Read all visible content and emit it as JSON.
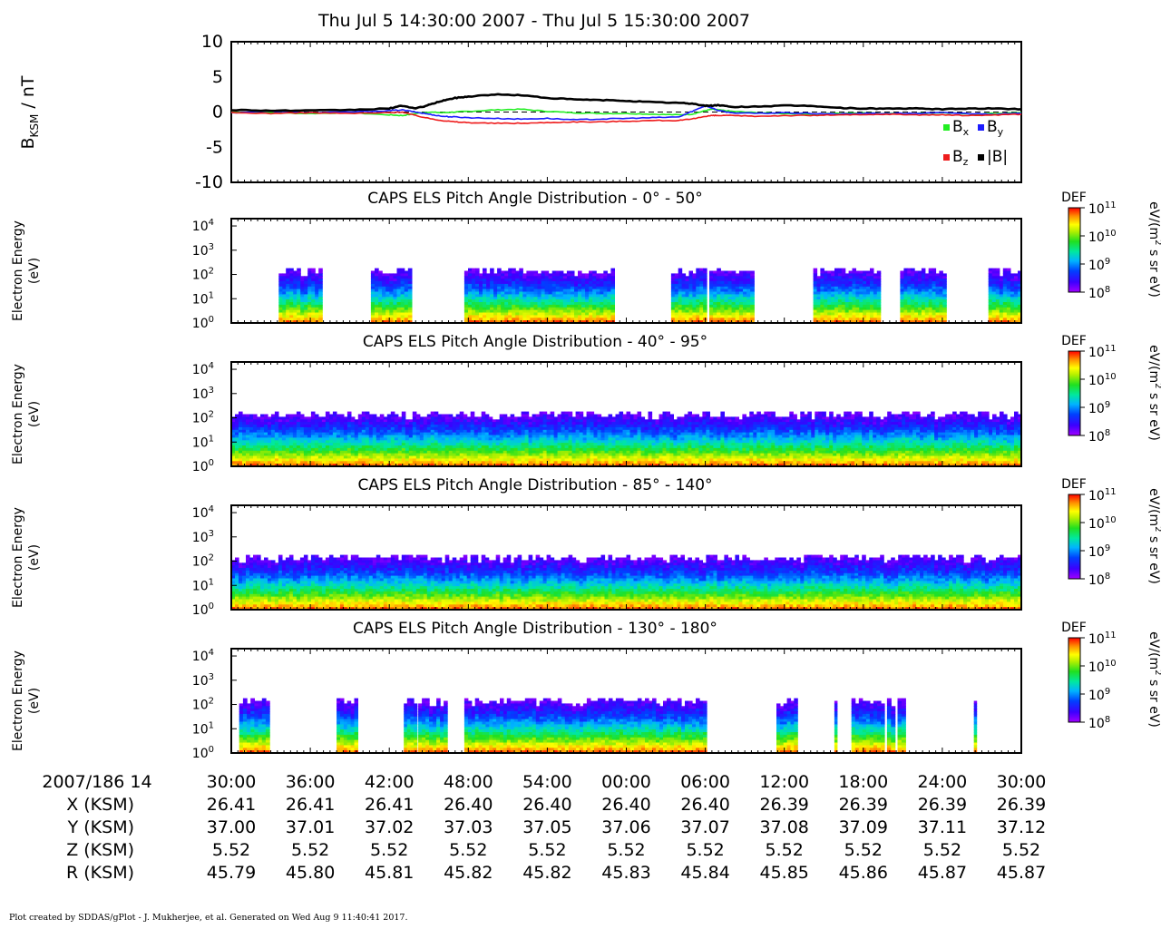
{
  "title": "Thu Jul 5 14:30:00 2007 - Thu Jul 5 15:30:00 2007",
  "footer": "Plot created by SDDAS/gPlot - J. Mukherjee, et al.  Generated on Wed Aug 9 11:40:41 2017.",
  "colors": {
    "bx": "#22ee22",
    "by": "#1c1cff",
    "bz": "#ee1c1c",
    "bmag": "#000000"
  },
  "mag_panel": {
    "ylabel_main": "B",
    "ylabel_sub": "KSM",
    "ylabel_unit": " / nT",
    "yticks": [
      "10",
      "5",
      "0",
      "-5",
      "-10"
    ],
    "legend": [
      {
        "key": "bx",
        "main": "B",
        "sub": "x",
        "color": "#22ee22"
      },
      {
        "key": "by",
        "main": "B",
        "sub": "y",
        "color": "#1c1cff"
      },
      {
        "key": "bz",
        "main": "B",
        "sub": "z",
        "color": "#ee1c1c"
      },
      {
        "key": "bmag",
        "main": "|B|",
        "sub": "",
        "color": "#000000"
      }
    ]
  },
  "spec_panels": [
    {
      "title": "CAPS ELS Pitch Angle Distribution - 0° - 50°"
    },
    {
      "title": "CAPS ELS Pitch Angle Distribution - 40° - 95°"
    },
    {
      "title": "CAPS ELS Pitch Angle Distribution - 85° - 140°"
    },
    {
      "title": "CAPS ELS Pitch Angle Distribution - 130° - 180°"
    }
  ],
  "spec_ylabel": [
    "Electron Energy",
    "(eV)"
  ],
  "spec_yticks": [
    {
      "base": "10",
      "exp": "4"
    },
    {
      "base": "10",
      "exp": "3"
    },
    {
      "base": "10",
      "exp": "2"
    },
    {
      "base": "10",
      "exp": "1"
    },
    {
      "base": "10",
      "exp": "0"
    }
  ],
  "colorbar": {
    "label": "DEF",
    "unit_a": "eV/(m",
    "unit_exp": "2",
    "unit_b": " s sr eV)",
    "ticks": [
      {
        "base": "10",
        "exp": "11"
      },
      {
        "base": "10",
        "exp": "10"
      },
      {
        "base": "10",
        "exp": "9"
      },
      {
        "base": "10",
        "exp": "8"
      }
    ]
  },
  "time_axis": {
    "label": "2007/186 14",
    "ticks": [
      "30:00",
      "36:00",
      "42:00",
      "48:00",
      "54:00",
      "00:00",
      "06:00",
      "12:00",
      "18:00",
      "24:00",
      "30:00"
    ]
  },
  "ephemeris": [
    {
      "label": "X (KSM)",
      "values": [
        "26.41",
        "26.41",
        "26.41",
        "26.40",
        "26.40",
        "26.40",
        "26.40",
        "26.39",
        "26.39",
        "26.39",
        "26.39"
      ]
    },
    {
      "label": "Y (KSM)",
      "values": [
        "37.00",
        "37.01",
        "37.02",
        "37.03",
        "37.05",
        "37.06",
        "37.07",
        "37.08",
        "37.09",
        "37.11",
        "37.12"
      ]
    },
    {
      "label": "Z (KSM)",
      "values": [
        "5.52",
        "5.52",
        "5.52",
        "5.52",
        "5.52",
        "5.52",
        "5.52",
        "5.52",
        "5.52",
        "5.52",
        "5.52"
      ]
    },
    {
      "label": "R (KSM)",
      "values": [
        "45.79",
        "45.80",
        "45.81",
        "45.82",
        "45.82",
        "45.83",
        "45.84",
        "45.85",
        "45.86",
        "45.87",
        "45.87"
      ]
    }
  ],
  "chart_data": [
    {
      "type": "line",
      "title": "Thu Jul 5 14:30:00 2007 - Thu Jul 5 15:30:00 2007",
      "xlabel": "2007/186 14",
      "ylabel": "BKSM / nT",
      "x_unit": "minutes after 14:30 UT",
      "ylim": [
        -10,
        10
      ],
      "x": [
        0,
        3,
        6,
        9,
        12,
        13,
        14,
        15,
        16,
        17,
        18,
        20,
        22,
        24,
        26,
        28,
        30,
        32,
        34,
        35,
        36,
        36.5,
        37,
        38,
        40,
        42,
        44,
        46,
        48,
        50,
        52,
        54,
        56,
        58,
        60
      ],
      "series": [
        {
          "name": "Bx",
          "color": "#22ee22",
          "values": [
            0.0,
            -0.1,
            -0.2,
            -0.1,
            -0.4,
            -0.5,
            -0.2,
            0.0,
            -0.1,
            0.0,
            0.1,
            0.3,
            0.4,
            0.1,
            -0.1,
            -0.2,
            -0.2,
            -0.3,
            -0.4,
            -0.3,
            0.2,
            0.4,
            0.3,
            0.1,
            -0.1,
            -0.2,
            -0.3,
            -0.2,
            -0.1,
            -0.2,
            -0.2,
            -0.1,
            -0.3,
            -0.2,
            -0.1
          ]
        },
        {
          "name": "By",
          "color": "#1c1cff",
          "values": [
            -0.1,
            0.1,
            -0.1,
            0.0,
            0.2,
            0.3,
            0.0,
            -0.3,
            -0.6,
            -0.7,
            -0.8,
            -0.9,
            -1.0,
            -0.9,
            -1.1,
            -1.0,
            -0.9,
            -0.8,
            -0.7,
            0.1,
            0.9,
            0.6,
            0.2,
            -0.1,
            -0.2,
            -0.1,
            -0.2,
            -0.3,
            -0.2,
            -0.2,
            -0.2,
            -0.1,
            -0.2,
            -0.3,
            -0.2
          ]
        },
        {
          "name": "Bz",
          "color": "#ee1c1c",
          "values": [
            -0.1,
            -0.2,
            -0.1,
            -0.2,
            -0.1,
            0.0,
            -0.5,
            -0.9,
            -1.2,
            -1.4,
            -1.5,
            -1.6,
            -1.6,
            -1.5,
            -1.4,
            -1.4,
            -1.3,
            -1.2,
            -1.2,
            -1.0,
            -0.6,
            -0.5,
            -0.5,
            -0.5,
            -0.6,
            -0.5,
            -0.5,
            -0.4,
            -0.4,
            -0.3,
            -0.4,
            -0.4,
            -0.5,
            -0.4,
            -0.3
          ]
        },
        {
          "name": "|B|",
          "color": "#000000",
          "values": [
            0.3,
            0.2,
            0.2,
            0.3,
            0.5,
            0.9,
            0.5,
            1.0,
            1.6,
            2.0,
            2.2,
            2.5,
            2.4,
            2.0,
            1.8,
            1.7,
            1.6,
            1.4,
            1.3,
            1.2,
            0.9,
            0.9,
            1.0,
            0.7,
            0.8,
            0.9,
            0.9,
            0.6,
            0.5,
            0.5,
            0.5,
            0.4,
            0.5,
            0.5,
            0.4
          ]
        }
      ]
    },
    {
      "type": "heatmap",
      "title": "CAPS ELS Pitch Angle Distribution - 0° - 50°",
      "ylabel": "Electron Energy (eV)",
      "y_scale": "log",
      "ylim_eV": [
        1,
        20000
      ],
      "colorbar": {
        "label": "DEF",
        "unit": "eV/(m2 s sr eV)",
        "range": [
          100000000.0,
          100000000000.0
        ],
        "scale": "log"
      },
      "data_intervals_minutes": [
        [
          3.6,
          6.9
        ],
        [
          10.6,
          13.7
        ],
        [
          17.7,
          21.3
        ],
        [
          21.3,
          29.1
        ],
        [
          33.4,
          36.1
        ],
        [
          36.3,
          39.7
        ],
        [
          44.2,
          49.3
        ],
        [
          50.8,
          54.3
        ],
        [
          57.5,
          60
        ]
      ],
      "upper_energy_edge_eV": 200
    },
    {
      "type": "heatmap",
      "title": "CAPS ELS Pitch Angle Distribution - 40° - 95°",
      "ylabel": "Electron Energy (eV)",
      "y_scale": "log",
      "ylim_eV": [
        1,
        20000
      ],
      "colorbar": {
        "label": "DEF",
        "unit": "eV/(m2 s sr eV)",
        "range": [
          100000000.0,
          100000000000.0
        ],
        "scale": "log"
      },
      "data_intervals_minutes": [
        [
          0,
          60
        ]
      ],
      "upper_energy_edge_eV": 200
    },
    {
      "type": "heatmap",
      "title": "CAPS ELS Pitch Angle Distribution - 85° - 140°",
      "ylabel": "Electron Energy (eV)",
      "y_scale": "log",
      "ylim_eV": [
        1,
        20000
      ],
      "colorbar": {
        "label": "DEF",
        "unit": "eV/(m2 s sr eV)",
        "range": [
          100000000.0,
          100000000000.0
        ],
        "scale": "log"
      },
      "data_intervals_minutes": [
        [
          0,
          60
        ]
      ],
      "upper_energy_edge_eV": 200
    },
    {
      "type": "heatmap",
      "title": "CAPS ELS Pitch Angle Distribution - 130° - 180°",
      "ylabel": "Electron Energy (eV)",
      "y_scale": "log",
      "ylim_eV": [
        1,
        20000
      ],
      "colorbar": {
        "label": "DEF",
        "unit": "eV/(m2 s sr eV)",
        "range": [
          100000000.0,
          100000000000.0
        ],
        "scale": "log"
      },
      "data_intervals_minutes": [
        [
          0.6,
          2.9
        ],
        [
          8.0,
          9.6
        ],
        [
          13.1,
          14.1
        ],
        [
          14.2,
          16.4
        ],
        [
          17.7,
          21.2
        ],
        [
          21.2,
          36.1
        ],
        [
          41.4,
          43.0
        ],
        [
          45.8,
          46.0
        ],
        [
          47.1,
          49.6
        ],
        [
          49.8,
          50.4
        ],
        [
          50.6,
          51.2
        ],
        [
          56.4,
          56.6
        ]
      ],
      "upper_energy_edge_eV": 200
    }
  ]
}
